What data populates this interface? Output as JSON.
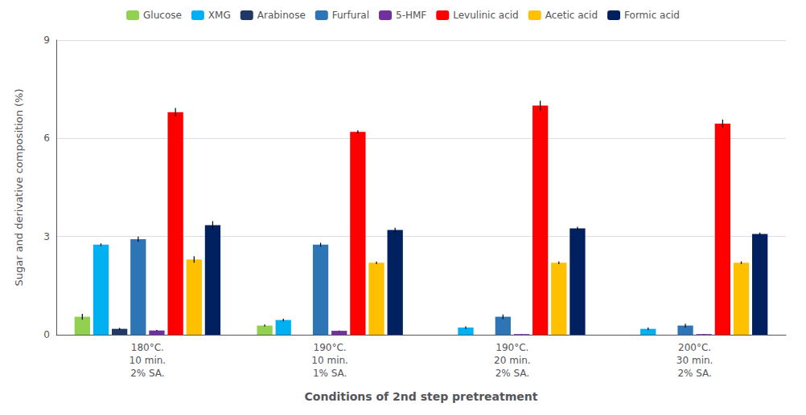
{
  "chart_data": {
    "type": "bar",
    "xlabel": "Conditions of 2nd step pretreatment",
    "ylabel": "Sugar and derivative composition (%)",
    "categories": [
      "180°C.\n10 min.\n2% SA.",
      "190°C.\n10 min.\n1% SA.",
      "190°C.\n20 min.\n2% SA.",
      "200°C.\n30 min.\n2% SA."
    ],
    "series": [
      {
        "name": "Glucose",
        "color": "#92d050",
        "values": [
          0.55,
          0.28,
          0.0,
          0.0
        ],
        "errors": [
          0.09,
          0.03,
          0.0,
          0.0
        ]
      },
      {
        "name": "XMG",
        "color": "#00b0f0",
        "values": [
          2.75,
          0.45,
          0.22,
          0.18
        ],
        "errors": [
          0.04,
          0.04,
          0.04,
          0.04
        ]
      },
      {
        "name": "Arabinose",
        "color": "#1f3864",
        "values": [
          0.18,
          0.0,
          0.0,
          0.0
        ],
        "errors": [
          0.03,
          0.0,
          0.0,
          0.0
        ]
      },
      {
        "name": "Furfural",
        "color": "#2e75b6",
        "values": [
          2.92,
          2.75,
          0.55,
          0.28
        ],
        "errors": [
          0.08,
          0.06,
          0.07,
          0.06
        ]
      },
      {
        "name": "5-HMF",
        "color": "#7030a0",
        "values": [
          0.13,
          0.12,
          0.02,
          0.02
        ],
        "errors": [
          0.02,
          0.01,
          0.005,
          0.005
        ]
      },
      {
        "name": "Levulinic acid",
        "color": "#ff0000",
        "values": [
          6.8,
          6.2,
          7.0,
          6.45
        ],
        "errors": [
          0.13,
          0.05,
          0.15,
          0.12
        ]
      },
      {
        "name": "Acetic acid",
        "color": "#ffc000",
        "values": [
          2.3,
          2.2,
          2.2,
          2.2
        ],
        "errors": [
          0.1,
          0.04,
          0.04,
          0.04
        ]
      },
      {
        "name": "Formic acid",
        "color": "#002060",
        "values": [
          3.35,
          3.2,
          3.25,
          3.08
        ],
        "errors": [
          0.12,
          0.07,
          0.05,
          0.04
        ]
      }
    ],
    "ylim": [
      0,
      9
    ],
    "yticks": [
      0,
      3,
      6,
      9
    ],
    "grid": true,
    "legend": "top"
  }
}
